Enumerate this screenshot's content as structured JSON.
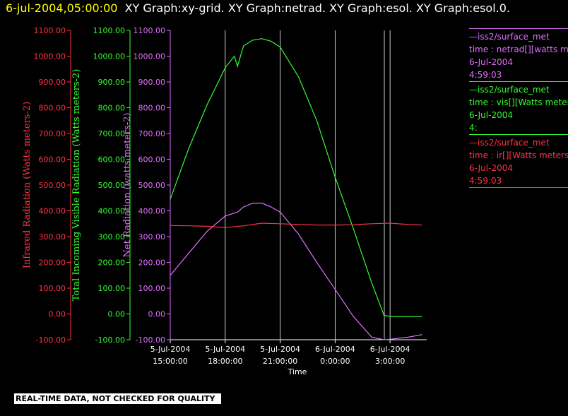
{
  "header": {
    "timestamp": "6-jul-2004,05:00:00",
    "graphs": "XY Graph:xy-grid.  XY Graph:netrad.  XY Graph:esol.  XY Graph:esol.0."
  },
  "footer": {
    "notice": "REAL-TIME DATA, NOT CHECKED FOR QUALITY"
  },
  "legend": [
    {
      "lines": [
        "—iss2/surface_met",
        "time : netrad[][watts meters-2]",
        "6-Jul-2004",
        "4:59:03"
      ],
      "color": "#e070ff"
    },
    {
      "lines": [
        "—iss2/surface_met",
        "time : vis[][Watts meters-2]",
        "6-Jul-2004",
        "4:"
      ],
      "color": "#33ff33"
    },
    {
      "lines": [
        "—iss2/surface_met",
        "time : ir[][Watts meters-2]",
        "6-Jul-2004",
        "4:59:03"
      ],
      "color": "#ff3344"
    }
  ],
  "chart_data": {
    "type": "line",
    "title": "",
    "xlabel": "Time",
    "x_ticks": [
      [
        "5-Jul-2004",
        "15:00:00"
      ],
      [
        "5-Jul-2004",
        "18:00:00"
      ],
      [
        "5-Jul-2004",
        "21:00:00"
      ],
      [
        "6-Jul-2004",
        "0:00:00"
      ],
      [
        "6-Jul-2004",
        "3:00:00"
      ]
    ],
    "xlim": [
      "2004-07-05 15:00",
      "2004-07-06 05:00"
    ],
    "grid": "vertical",
    "axes": [
      {
        "ylabel": "Infrared Radiation (Watts meters-2)",
        "color": "#ff3344",
        "ylim": [
          -100,
          1100
        ],
        "ticks": [
          "1100.00",
          "1000.00",
          "900.00",
          "800.00",
          "700.00",
          "600.00",
          "500.00",
          "400.00",
          "300.00",
          "200.00",
          "100.00",
          "0.00",
          "-100.00"
        ]
      },
      {
        "ylabel": "Total Incoming Visible Radiation (Watts meters-2)",
        "color": "#33ff33",
        "ylim": [
          -100,
          1100
        ],
        "ticks": [
          "1100.00",
          "1000.00",
          "900.00",
          "800.00",
          "700.00",
          "600.00",
          "500.00",
          "400.00",
          "300.00",
          "200.00",
          "100.00",
          "0.00",
          "-100.00"
        ]
      },
      {
        "ylabel": "Net Radiation (watts meters-2)",
        "color": "#e070ff",
        "ylim": [
          -100,
          1100
        ],
        "ticks": [
          "1100.00",
          "1000.00",
          "900.00",
          "800.00",
          "700.00",
          "600.00",
          "500.00",
          "400.00",
          "300.00",
          "200.00",
          "100.00",
          "0.00",
          "-100.00"
        ]
      }
    ],
    "series": [
      {
        "color": "#33ff33",
        "axis": 1,
        "x": [
          "2004-07-05 15:00",
          "2004-07-05 16:00",
          "2004-07-05 17:00",
          "2004-07-05 18:00",
          "2004-07-05 18:30",
          "2004-07-05 18:40",
          "2004-07-05 19:00",
          "2004-07-05 19:30",
          "2004-07-05 20:00",
          "2004-07-05 20:30",
          "2004-07-05 21:00",
          "2004-07-05 22:00",
          "2004-07-05 23:00",
          "2004-07-06 00:00",
          "2004-07-06 01:00",
          "2004-07-06 02:00",
          "2004-07-06 02:40",
          "2004-07-06 03:00",
          "2004-07-06 04:00",
          "2004-07-06 04:45"
        ],
        "y": [
          445,
          640,
          810,
          955,
          1000,
          960,
          1040,
          1062,
          1068,
          1058,
          1035,
          920,
          750,
          530,
          330,
          120,
          -5,
          -10,
          -10,
          -10
        ]
      },
      {
        "color": "#e070ff",
        "axis": 2,
        "x": [
          "2004-07-05 15:00",
          "2004-07-05 16:00",
          "2004-07-05 17:00",
          "2004-07-05 18:00",
          "2004-07-05 18:40",
          "2004-07-05 19:00",
          "2004-07-05 19:30",
          "2004-07-05 20:00",
          "2004-07-05 20:30",
          "2004-07-05 21:00",
          "2004-07-05 22:00",
          "2004-07-05 23:00",
          "2004-07-06 00:00",
          "2004-07-06 01:00",
          "2004-07-06 02:00",
          "2004-07-06 02:40",
          "2004-07-06 03:00",
          "2004-07-06 04:00",
          "2004-07-06 04:45"
        ],
        "y": [
          150,
          235,
          320,
          380,
          395,
          415,
          430,
          430,
          415,
          395,
          310,
          200,
          95,
          -10,
          -90,
          -100,
          -98,
          -90,
          -80
        ]
      },
      {
        "color": "#ff3344",
        "axis": 0,
        "x": [
          "2004-07-05 15:00",
          "2004-07-05 16:00",
          "2004-07-05 17:00",
          "2004-07-05 18:00",
          "2004-07-05 19:00",
          "2004-07-05 20:00",
          "2004-07-05 21:00",
          "2004-07-05 22:00",
          "2004-07-05 23:00",
          "2004-07-06 00:00",
          "2004-07-06 01:00",
          "2004-07-06 02:00",
          "2004-07-06 03:00",
          "2004-07-06 04:00",
          "2004-07-06 04:45"
        ],
        "y": [
          343,
          342,
          340,
          335,
          342,
          352,
          350,
          347,
          345,
          345,
          346,
          350,
          352,
          347,
          345
        ]
      }
    ]
  }
}
